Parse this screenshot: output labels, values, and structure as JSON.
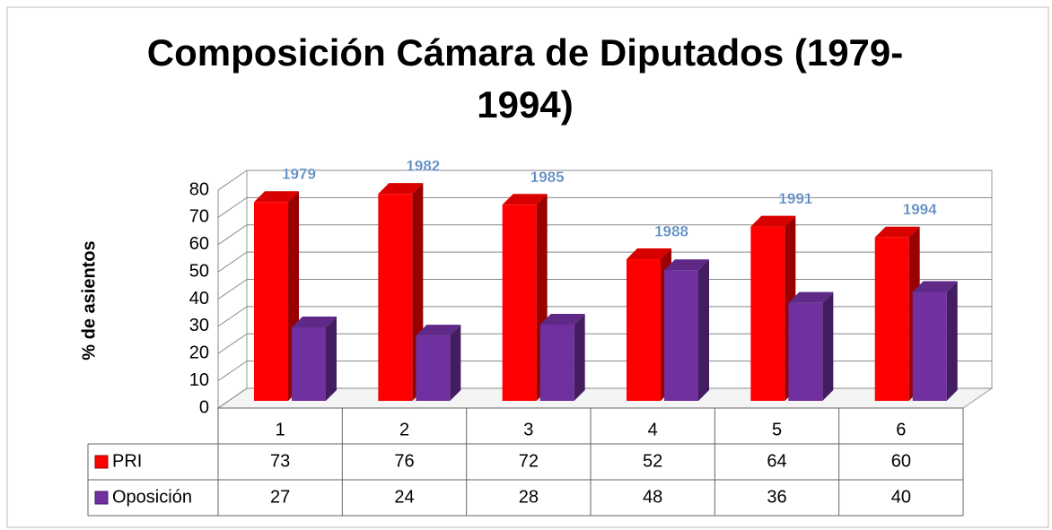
{
  "chart_data": {
    "type": "bar3d",
    "title": "Composición Cámara de Diputados (1979-1994)",
    "y_label": "% de asientos",
    "categories": [
      "1",
      "2",
      "3",
      "4",
      "5",
      "6"
    ],
    "annotations": [
      "1979",
      "1982",
      "1985",
      "1988",
      "1991",
      "1994"
    ],
    "series": [
      {
        "name": "PRI",
        "color": "#ff0000",
        "values": [
          73,
          76,
          72,
          52,
          64,
          60
        ]
      },
      {
        "name": "Oposición",
        "color": "#7030a0",
        "values": [
          27,
          24,
          28,
          48,
          36,
          40
        ]
      }
    ],
    "ylim": [
      0,
      80
    ],
    "yticks": [
      0,
      10,
      20,
      30,
      40,
      50,
      60,
      70,
      80
    ],
    "grid": true,
    "data_table": true
  }
}
